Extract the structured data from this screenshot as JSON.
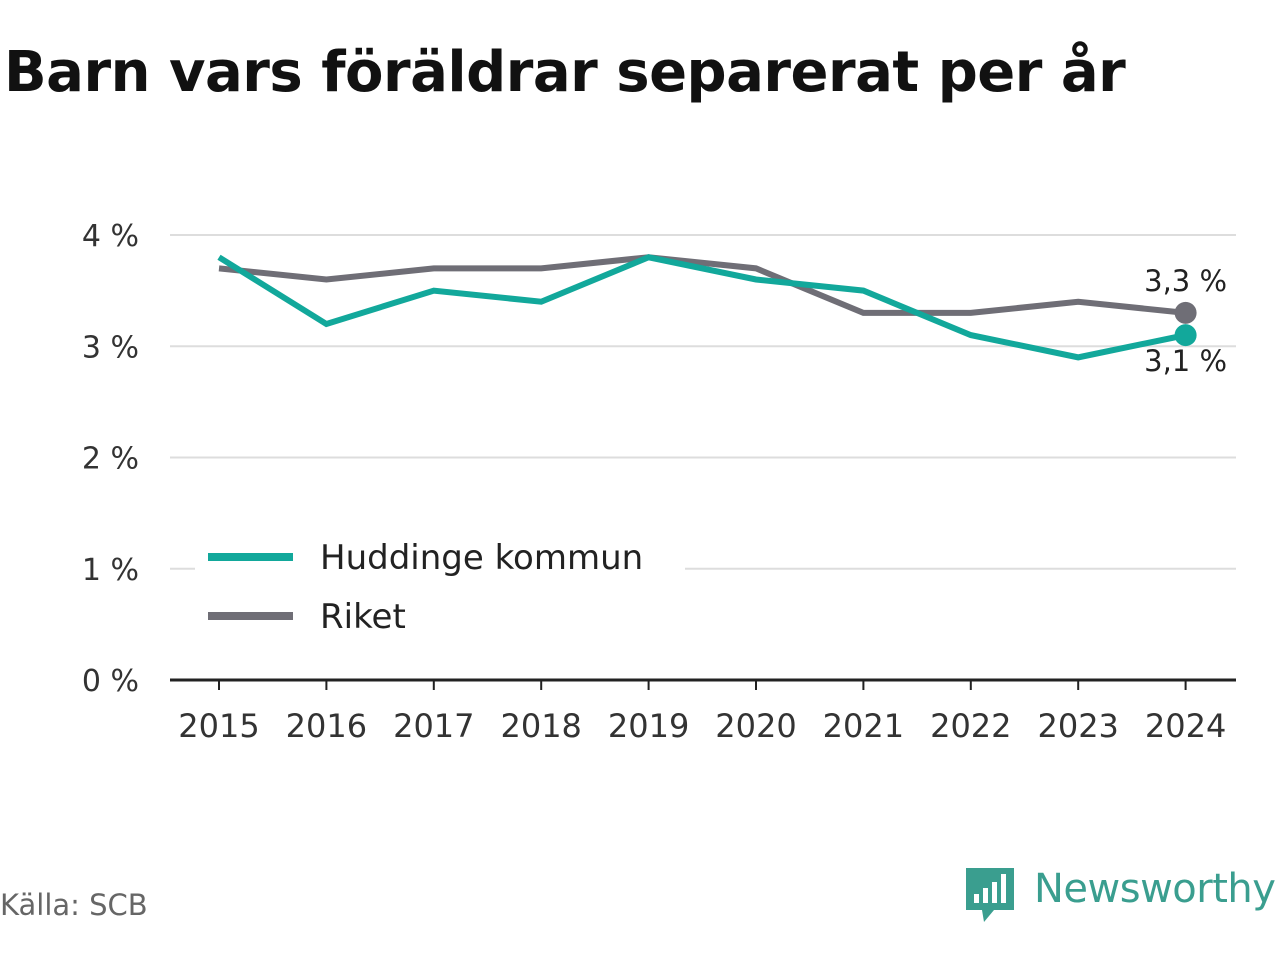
{
  "title": "Barn vars föräldrar separerat per år",
  "source": "Källa: SCB",
  "brand": {
    "name": "Newsworthy",
    "icon": "newsworthy-logo-icon",
    "color": "#3a9e8f"
  },
  "chart_data": {
    "type": "line",
    "title": "Barn vars föräldrar separerat per år",
    "xlabel": "",
    "ylabel": "",
    "x": [
      "2015",
      "2016",
      "2017",
      "2018",
      "2019",
      "2020",
      "2021",
      "2022",
      "2023",
      "2024"
    ],
    "ylim": [
      0,
      4
    ],
    "y_ticks": [
      0,
      1,
      2,
      3,
      4
    ],
    "y_tick_labels": [
      "0 %",
      "1 %",
      "2 %",
      "3 %",
      "4 %"
    ],
    "grid": true,
    "legend_position": "bottom-left",
    "series": [
      {
        "name": "Huddinge kommun",
        "color": "#12a89b",
        "values": [
          3.8,
          3.2,
          3.5,
          3.4,
          3.8,
          3.6,
          3.5,
          3.1,
          2.9,
          3.1
        ],
        "end_label": "3,1 %"
      },
      {
        "name": "Riket",
        "color": "#6f6e76",
        "values": [
          3.7,
          3.6,
          3.7,
          3.7,
          3.8,
          3.7,
          3.3,
          3.3,
          3.4,
          3.3
        ],
        "end_label": "3,3 %"
      }
    ]
  }
}
